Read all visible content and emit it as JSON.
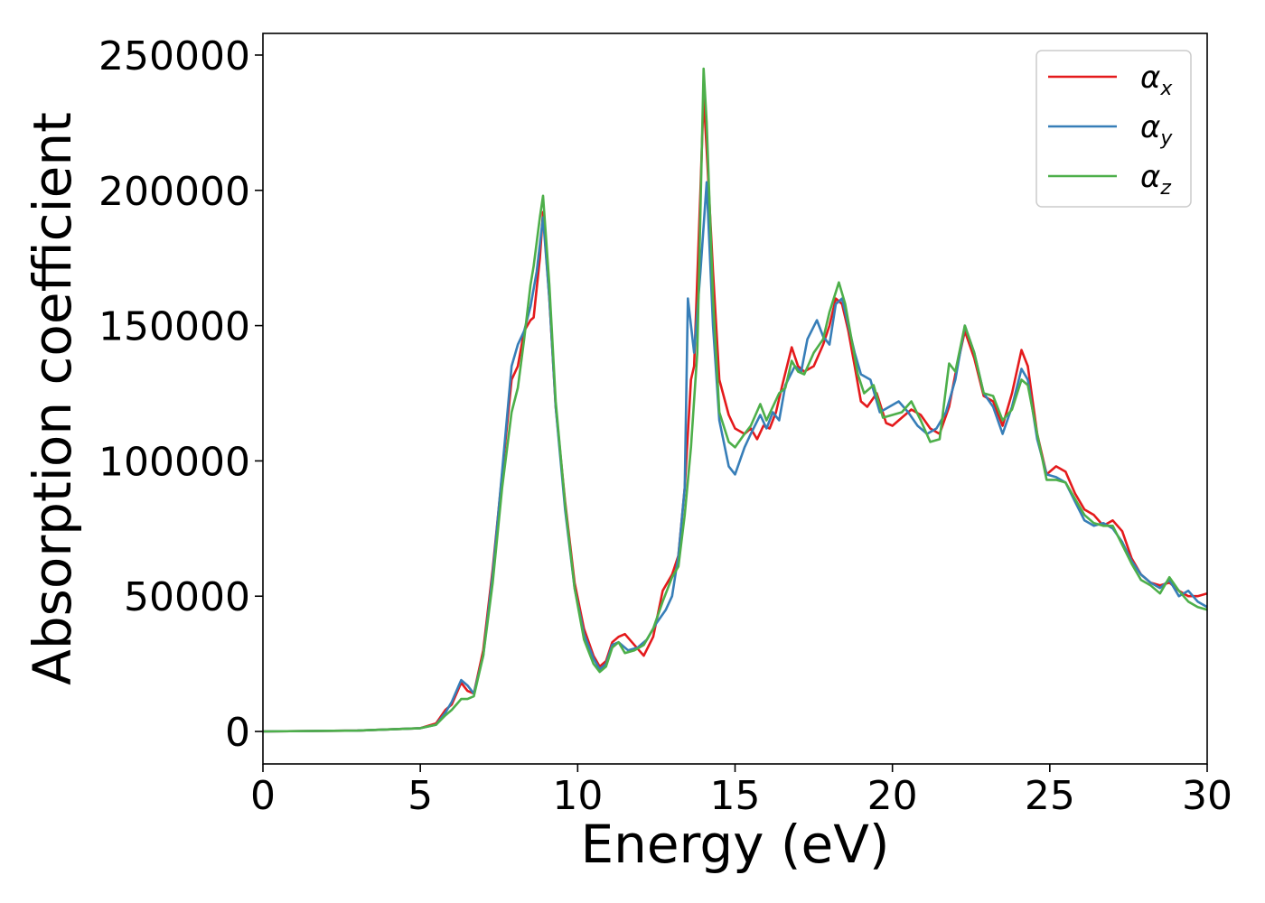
{
  "chart_data": {
    "type": "line",
    "title": "",
    "xlabel": "Energy (eV)",
    "ylabel": "Absorption coefficient",
    "xlim": [
      0,
      30
    ],
    "ylim": [
      -12000,
      258000
    ],
    "xticks": [
      0,
      5,
      10,
      15,
      20,
      25,
      30
    ],
    "yticks": [
      0,
      50000,
      100000,
      150000,
      200000,
      250000
    ],
    "grid": false,
    "legend_position": "top-right",
    "series": [
      {
        "name": "α_x",
        "symbol": "α",
        "subscript": "x",
        "color": "#e41a1c",
        "points": [
          [
            0,
            0
          ],
          [
            3,
            300
          ],
          [
            5,
            1200
          ],
          [
            5.5,
            3000
          ],
          [
            5.8,
            8000
          ],
          [
            6,
            10000
          ],
          [
            6.3,
            18000
          ],
          [
            6.5,
            15000
          ],
          [
            6.7,
            14000
          ],
          [
            7,
            30000
          ],
          [
            7.3,
            60000
          ],
          [
            7.6,
            95000
          ],
          [
            7.9,
            130000
          ],
          [
            8.1,
            135000
          ],
          [
            8.3,
            148000
          ],
          [
            8.5,
            152000
          ],
          [
            8.6,
            153000
          ],
          [
            8.8,
            175000
          ],
          [
            8.9,
            192000
          ],
          [
            9.1,
            160000
          ],
          [
            9.3,
            120000
          ],
          [
            9.6,
            85000
          ],
          [
            9.9,
            55000
          ],
          [
            10.2,
            38000
          ],
          [
            10.5,
            28000
          ],
          [
            10.7,
            24000
          ],
          [
            10.9,
            26000
          ],
          [
            11.1,
            33000
          ],
          [
            11.3,
            35000
          ],
          [
            11.5,
            36000
          ],
          [
            11.8,
            32000
          ],
          [
            12.1,
            28000
          ],
          [
            12.4,
            35000
          ],
          [
            12.7,
            52000
          ],
          [
            13,
            58000
          ],
          [
            13.2,
            65000
          ],
          [
            13.4,
            90000
          ],
          [
            13.6,
            130000
          ],
          [
            13.7,
            135000
          ],
          [
            13.9,
            200000
          ],
          [
            14,
            235000
          ],
          [
            14.1,
            215000
          ],
          [
            14.3,
            170000
          ],
          [
            14.5,
            130000
          ],
          [
            14.8,
            117000
          ],
          [
            15,
            112000
          ],
          [
            15.3,
            110000
          ],
          [
            15.5,
            112000
          ],
          [
            15.7,
            108000
          ],
          [
            15.9,
            113000
          ],
          [
            16.1,
            112000
          ],
          [
            16.3,
            118000
          ],
          [
            16.5,
            128000
          ],
          [
            16.8,
            142000
          ],
          [
            17,
            135000
          ],
          [
            17.2,
            133000
          ],
          [
            17.5,
            135000
          ],
          [
            17.8,
            143000
          ],
          [
            18,
            150000
          ],
          [
            18.2,
            160000
          ],
          [
            18.4,
            158000
          ],
          [
            18.6,
            148000
          ],
          [
            18.8,
            135000
          ],
          [
            19,
            122000
          ],
          [
            19.2,
            120000
          ],
          [
            19.5,
            125000
          ],
          [
            19.8,
            114000
          ],
          [
            20,
            113000
          ],
          [
            20.3,
            116000
          ],
          [
            20.6,
            119000
          ],
          [
            20.9,
            117000
          ],
          [
            21.2,
            112000
          ],
          [
            21.5,
            110000
          ],
          [
            21.8,
            120000
          ],
          [
            22,
            132000
          ],
          [
            22.3,
            148000
          ],
          [
            22.6,
            138000
          ],
          [
            22.9,
            124000
          ],
          [
            23.2,
            122000
          ],
          [
            23.5,
            113000
          ],
          [
            23.8,
            125000
          ],
          [
            24.1,
            141000
          ],
          [
            24.3,
            135000
          ],
          [
            24.6,
            110000
          ],
          [
            24.9,
            95000
          ],
          [
            25.2,
            98000
          ],
          [
            25.5,
            96000
          ],
          [
            25.8,
            88000
          ],
          [
            26.1,
            82000
          ],
          [
            26.4,
            80000
          ],
          [
            26.7,
            76000
          ],
          [
            27,
            78000
          ],
          [
            27.3,
            74000
          ],
          [
            27.6,
            64000
          ],
          [
            27.9,
            58000
          ],
          [
            28.2,
            55000
          ],
          [
            28.5,
            54000
          ],
          [
            28.8,
            55000
          ],
          [
            29.1,
            52000
          ],
          [
            29.4,
            50000
          ],
          [
            29.7,
            50000
          ],
          [
            30,
            51000
          ]
        ]
      },
      {
        "name": "α_y",
        "symbol": "α",
        "subscript": "y",
        "color": "#377eb8",
        "points": [
          [
            0,
            0
          ],
          [
            3,
            300
          ],
          [
            5,
            1200
          ],
          [
            5.5,
            2500
          ],
          [
            5.8,
            7000
          ],
          [
            6,
            11000
          ],
          [
            6.3,
            19000
          ],
          [
            6.5,
            17000
          ],
          [
            6.7,
            14000
          ],
          [
            7,
            28000
          ],
          [
            7.3,
            58000
          ],
          [
            7.6,
            96000
          ],
          [
            7.9,
            135000
          ],
          [
            8.1,
            143000
          ],
          [
            8.3,
            148000
          ],
          [
            8.5,
            157000
          ],
          [
            8.7,
            170000
          ],
          [
            8.9,
            190000
          ],
          [
            9.1,
            160000
          ],
          [
            9.3,
            120000
          ],
          [
            9.6,
            82000
          ],
          [
            9.9,
            53000
          ],
          [
            10.2,
            36000
          ],
          [
            10.5,
            27000
          ],
          [
            10.7,
            23000
          ],
          [
            10.9,
            25000
          ],
          [
            11.1,
            32000
          ],
          [
            11.3,
            33000
          ],
          [
            11.6,
            30000
          ],
          [
            11.9,
            31000
          ],
          [
            12.2,
            34000
          ],
          [
            12.5,
            40000
          ],
          [
            12.8,
            45000
          ],
          [
            13,
            50000
          ],
          [
            13.2,
            65000
          ],
          [
            13.4,
            90000
          ],
          [
            13.5,
            160000
          ],
          [
            13.7,
            140000
          ],
          [
            13.9,
            170000
          ],
          [
            14.1,
            203000
          ],
          [
            14.3,
            150000
          ],
          [
            14.5,
            115000
          ],
          [
            14.8,
            98000
          ],
          [
            15,
            95000
          ],
          [
            15.3,
            105000
          ],
          [
            15.5,
            110000
          ],
          [
            15.8,
            117000
          ],
          [
            16,
            112000
          ],
          [
            16.2,
            118000
          ],
          [
            16.4,
            115000
          ],
          [
            16.6,
            128000
          ],
          [
            16.9,
            135000
          ],
          [
            17.1,
            133000
          ],
          [
            17.3,
            145000
          ],
          [
            17.6,
            152000
          ],
          [
            17.8,
            146000
          ],
          [
            18,
            143000
          ],
          [
            18.2,
            158000
          ],
          [
            18.4,
            160000
          ],
          [
            18.6,
            150000
          ],
          [
            18.8,
            140000
          ],
          [
            19,
            132000
          ],
          [
            19.3,
            130000
          ],
          [
            19.6,
            118000
          ],
          [
            19.9,
            120000
          ],
          [
            20.2,
            122000
          ],
          [
            20.5,
            118000
          ],
          [
            20.8,
            113000
          ],
          [
            21.1,
            110000
          ],
          [
            21.4,
            112000
          ],
          [
            21.7,
            118000
          ],
          [
            22,
            130000
          ],
          [
            22.3,
            150000
          ],
          [
            22.6,
            140000
          ],
          [
            22.9,
            125000
          ],
          [
            23.2,
            120000
          ],
          [
            23.5,
            110000
          ],
          [
            23.8,
            120000
          ],
          [
            24.1,
            134000
          ],
          [
            24.3,
            130000
          ],
          [
            24.6,
            108000
          ],
          [
            24.9,
            95000
          ],
          [
            25.2,
            94000
          ],
          [
            25.5,
            92000
          ],
          [
            25.8,
            85000
          ],
          [
            26.1,
            78000
          ],
          [
            26.4,
            76000
          ],
          [
            26.7,
            77000
          ],
          [
            27,
            75000
          ],
          [
            27.3,
            70000
          ],
          [
            27.6,
            63000
          ],
          [
            27.9,
            58000
          ],
          [
            28.2,
            55000
          ],
          [
            28.5,
            53000
          ],
          [
            28.8,
            56000
          ],
          [
            29.1,
            50000
          ],
          [
            29.4,
            52000
          ],
          [
            29.7,
            48000
          ],
          [
            30,
            46000
          ]
        ]
      },
      {
        "name": "α_z",
        "symbol": "α",
        "subscript": "z",
        "color": "#4daf4a",
        "points": [
          [
            0,
            0
          ],
          [
            3,
            300
          ],
          [
            5,
            1200
          ],
          [
            5.5,
            2500
          ],
          [
            5.8,
            6000
          ],
          [
            6,
            8000
          ],
          [
            6.3,
            12000
          ],
          [
            6.5,
            12000
          ],
          [
            6.7,
            13000
          ],
          [
            7,
            28000
          ],
          [
            7.3,
            55000
          ],
          [
            7.6,
            90000
          ],
          [
            7.9,
            118000
          ],
          [
            8.1,
            127000
          ],
          [
            8.3,
            145000
          ],
          [
            8.5,
            165000
          ],
          [
            8.6,
            172000
          ],
          [
            8.8,
            190000
          ],
          [
            8.9,
            198000
          ],
          [
            9.1,
            165000
          ],
          [
            9.3,
            122000
          ],
          [
            9.6,
            84000
          ],
          [
            9.9,
            53000
          ],
          [
            10.2,
            34000
          ],
          [
            10.5,
            25000
          ],
          [
            10.7,
            22000
          ],
          [
            10.9,
            24000
          ],
          [
            11.1,
            31000
          ],
          [
            11.3,
            33000
          ],
          [
            11.5,
            29000
          ],
          [
            11.8,
            30000
          ],
          [
            12.1,
            32000
          ],
          [
            12.4,
            38000
          ],
          [
            12.7,
            48000
          ],
          [
            13,
            57000
          ],
          [
            13.2,
            61000
          ],
          [
            13.4,
            80000
          ],
          [
            13.6,
            105000
          ],
          [
            13.8,
            140000
          ],
          [
            14,
            245000
          ],
          [
            14.1,
            225000
          ],
          [
            14.3,
            160000
          ],
          [
            14.5,
            118000
          ],
          [
            14.8,
            107000
          ],
          [
            15,
            105000
          ],
          [
            15.3,
            110000
          ],
          [
            15.5,
            113000
          ],
          [
            15.8,
            121000
          ],
          [
            16,
            115000
          ],
          [
            16.2,
            120000
          ],
          [
            16.4,
            125000
          ],
          [
            16.6,
            127000
          ],
          [
            16.8,
            137000
          ],
          [
            17,
            133000
          ],
          [
            17.2,
            132000
          ],
          [
            17.5,
            140000
          ],
          [
            17.8,
            145000
          ],
          [
            18,
            155000
          ],
          [
            18.3,
            166000
          ],
          [
            18.5,
            158000
          ],
          [
            18.7,
            145000
          ],
          [
            18.9,
            132000
          ],
          [
            19.1,
            125000
          ],
          [
            19.4,
            128000
          ],
          [
            19.7,
            116000
          ],
          [
            20,
            117000
          ],
          [
            20.3,
            118000
          ],
          [
            20.6,
            122000
          ],
          [
            20.9,
            115000
          ],
          [
            21.2,
            107000
          ],
          [
            21.5,
            108000
          ],
          [
            21.8,
            136000
          ],
          [
            22,
            133000
          ],
          [
            22.3,
            150000
          ],
          [
            22.6,
            140000
          ],
          [
            22.9,
            125000
          ],
          [
            23.2,
            124000
          ],
          [
            23.5,
            115000
          ],
          [
            23.8,
            119000
          ],
          [
            24.1,
            130000
          ],
          [
            24.3,
            128000
          ],
          [
            24.6,
            110000
          ],
          [
            24.9,
            93000
          ],
          [
            25.2,
            93000
          ],
          [
            25.5,
            92000
          ],
          [
            25.8,
            86000
          ],
          [
            26.1,
            80000
          ],
          [
            26.4,
            77000
          ],
          [
            26.7,
            76000
          ],
          [
            27,
            76000
          ],
          [
            27.3,
            69000
          ],
          [
            27.6,
            62000
          ],
          [
            27.9,
            56000
          ],
          [
            28.2,
            54000
          ],
          [
            28.5,
            51000
          ],
          [
            28.8,
            57000
          ],
          [
            29.1,
            52000
          ],
          [
            29.4,
            48000
          ],
          [
            29.7,
            46000
          ],
          [
            30,
            45000
          ]
        ]
      }
    ]
  }
}
